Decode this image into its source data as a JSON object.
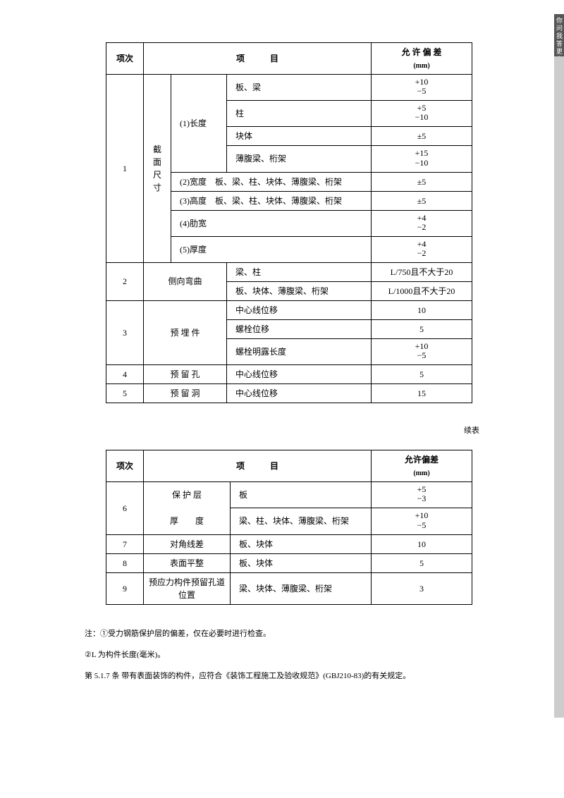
{
  "sideTab": "你问我答更多",
  "table1": {
    "headers": {
      "c1": "项次",
      "c2": "项　　　目",
      "c3": "允 许 偏 差",
      "c3sub": "(mm)"
    },
    "r1": {
      "num": "1",
      "cat": "截面尺寸",
      "a_label": "(1)长度",
      "a1": "板、梁",
      "a1v": "+10\n−5",
      "a2": "柱",
      "a2v": "+5\n−10",
      "a3": "块体",
      "a3v": "±5",
      "a4": "薄腹梁、桁架",
      "a4v": "+15\n−10",
      "b": "(2)宽度　板、梁、柱、块体、薄腹梁、桁架",
      "bv": "±5",
      "c": "(3)高度　板、梁、柱、块体、薄腹梁、桁架",
      "cv": "±5",
      "d": "(4)肋宽",
      "dv": "+4\n−2",
      "e": "(5)厚度",
      "ev": "+4\n−2"
    },
    "r2": {
      "num": "2",
      "cat": "侧向弯曲",
      "a": "梁、柱",
      "av": "L/750且不大于20",
      "b": "板、块体、薄腹梁、桁架",
      "bv": "L/1000且不大于20"
    },
    "r3": {
      "num": "3",
      "cat": "预 埋 件",
      "a": "中心线位移",
      "av": "10",
      "b": "螺栓位移",
      "bv": "5",
      "c": "螺栓明露长度",
      "cv": "+10\n−5"
    },
    "r4": {
      "num": "4",
      "cat": "预 留 孔",
      "a": "中心线位移",
      "av": "5"
    },
    "r5": {
      "num": "5",
      "cat": "预 留 洞",
      "a": "中心线位移",
      "av": "15"
    }
  },
  "contLabel": "续表",
  "table2": {
    "headers": {
      "c1": "项次",
      "c2": "项　　　目",
      "c3": "允许偏差",
      "c3sub": "(mm)"
    },
    "r6": {
      "num": "6",
      "cat1": "保 护 层",
      "cat2": "厚　　度",
      "a": "板",
      "av": "+5\n−3",
      "b": "梁、柱、块体、薄腹梁、桁架",
      "bv": "+10\n−5"
    },
    "r7": {
      "num": "7",
      "cat": "对角线差",
      "a": "板、块体",
      "av": "10"
    },
    "r8": {
      "num": "8",
      "cat": "表面平整",
      "a": "板、块体",
      "av": "5"
    },
    "r9": {
      "num": "9",
      "cat": "预应力构件预留孔道位置",
      "a": "梁、块体、薄腹梁、桁架",
      "av": "3"
    }
  },
  "notes": {
    "n1": "注：①受力钢筋保护层的偏差，仅在必要时进行检查。",
    "n2": "②L 为构件长度(毫米)。",
    "n3": "第 5.1.7 条 带有表面装饰的构件，应符合《装饰工程施工及验收规范》(GBJ210-83)的有关规定。"
  }
}
